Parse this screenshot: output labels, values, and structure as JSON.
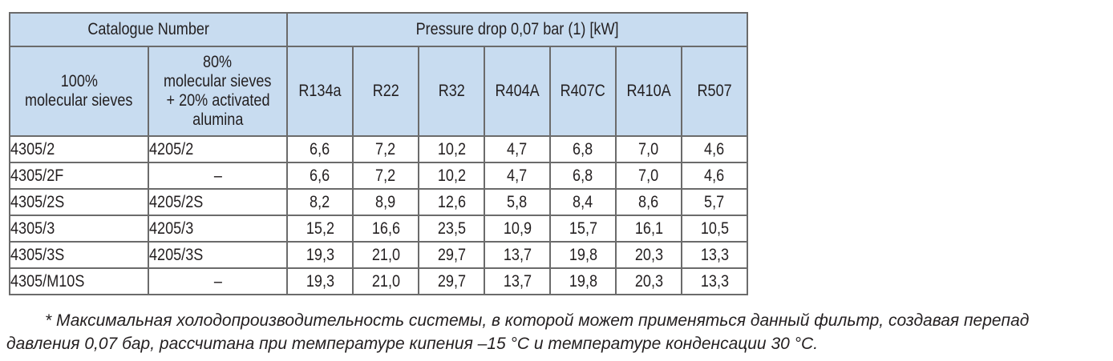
{
  "table": {
    "header": {
      "catalogue_number": "Catalogue Number",
      "pressure_drop": "Pressure drop 0,07 bar (1) [kW]",
      "col_100": [
        "100%",
        "molecular sieves"
      ],
      "col_80": [
        "80%",
        "molecular sieves",
        "+ 20% activated",
        "alumina"
      ],
      "refrigerants": [
        "R134a",
        "R22",
        "R32",
        "R404A",
        "R407C",
        "R410A",
        "R507"
      ]
    },
    "rows": [
      {
        "cat100": "4305/2",
        "cat80": "4205/2",
        "values": [
          "6,6",
          "7,2",
          "10,2",
          "4,7",
          "6,8",
          "7,0",
          "4,6"
        ]
      },
      {
        "cat100": "4305/2F",
        "cat80": "–",
        "values": [
          "6,6",
          "7,2",
          "10,2",
          "4,7",
          "6,8",
          "7,0",
          "4,6"
        ]
      },
      {
        "cat100": "4305/2S",
        "cat80": "4205/2S",
        "values": [
          "8,2",
          "8,9",
          "12,6",
          "5,8",
          "8,4",
          "8,6",
          "5,7"
        ]
      },
      {
        "cat100": "4305/3",
        "cat80": "4205/3",
        "values": [
          "15,2",
          "16,6",
          "23,5",
          "10,9",
          "15,7",
          "16,1",
          "10,5"
        ]
      },
      {
        "cat100": "4305/3S",
        "cat80": "4205/3S",
        "values": [
          "19,3",
          "21,0",
          "29,7",
          "13,7",
          "19,8",
          "20,3",
          "13,3"
        ]
      },
      {
        "cat100": "4305/M10S",
        "cat80": "–",
        "values": [
          "19,3",
          "21,0",
          "29,7",
          "13,7",
          "19,8",
          "20,3",
          "13,3"
        ]
      }
    ]
  },
  "footnote": {
    "line1": "* Максимальная холодопроизводительность системы, в которой может применяться данный фильтр, создавая перепад",
    "line2": "давления 0,07 бар, рассчитана при температуре кипения –15 °C и температуре конденсации 30 °C."
  }
}
